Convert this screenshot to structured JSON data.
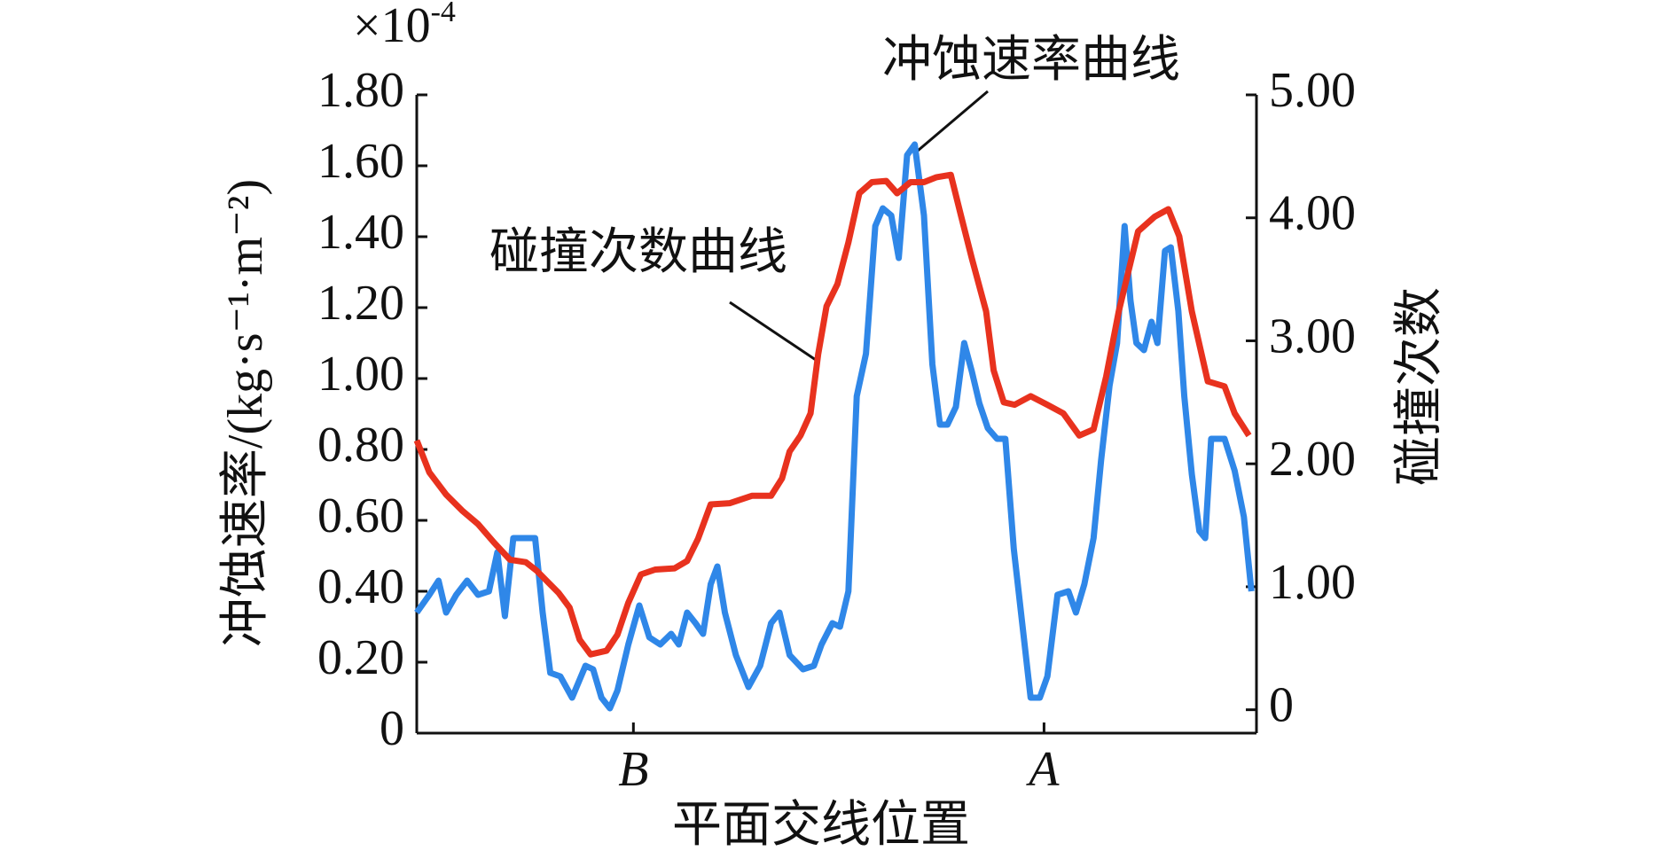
{
  "chart_data": {
    "type": "line",
    "y_multiplier": {
      "base": "×10",
      "exponent": "-4"
    },
    "ylabel": "冲蚀速率/(kg·s⁻¹·m⁻²)",
    "y2label": "碰撞次数",
    "xlabel": "平面交线位置",
    "annotations": [
      "冲蚀速率曲线",
      "碰撞次数曲线"
    ],
    "xlim": [
      0,
      100
    ],
    "xticks": [
      {
        "value": 25.8,
        "label": "B"
      },
      {
        "value": 74.7,
        "label": "A"
      }
    ],
    "ylim": [
      0,
      1.8
    ],
    "yticks": [
      0,
      {
        "value": 0.2,
        "label": "0.20"
      },
      {
        "value": 0.4,
        "label": "0.40"
      },
      {
        "value": 0.6,
        "label": "0.60"
      },
      {
        "value": 0.8,
        "label": "0.80"
      },
      {
        "value": 1.0,
        "label": "1.00"
      },
      {
        "value": 1.2,
        "label": "1.20"
      },
      {
        "value": 1.4,
        "label": "1.40"
      },
      {
        "value": 1.6,
        "label": "1.60"
      },
      {
        "value": 1.8,
        "label": "1.80"
      }
    ],
    "y2lim": [
      -0.19,
      5
    ],
    "y2ticks": [
      0,
      {
        "value": 1,
        "label": "1.00"
      },
      {
        "value": 2,
        "label": "2.00"
      },
      {
        "value": 3,
        "label": "3.00"
      },
      {
        "value": 4,
        "label": "4.00"
      },
      {
        "value": 5,
        "label": "5.00"
      }
    ],
    "series": [
      {
        "color": "#2f87e8",
        "axis": "y",
        "x": [
          0.0,
          1.5,
          2.6,
          3.5,
          4.7,
          6.0,
          7.3,
          8.6,
          9.6,
          10.5,
          11.5,
          13.0,
          14.1,
          15.0,
          15.9,
          17.1,
          18.5,
          20.1,
          21.0,
          22.0,
          23.0,
          23.9,
          25.2,
          26.5,
          27.7,
          29.0,
          30.3,
          31.2,
          32.2,
          33.2,
          34.1,
          35.0,
          35.8,
          36.7,
          38.0,
          39.5,
          40.9,
          42.2,
          43.2,
          44.4,
          46.0,
          47.3,
          48.2,
          49.5,
          50.4,
          51.4,
          52.4,
          53.5,
          54.6,
          55.5,
          56.5,
          57.4,
          58.4,
          59.3,
          60.4,
          61.4,
          62.3,
          63.2,
          64.2,
          65.2,
          66.1,
          67.0,
          68.0,
          69.1,
          70.1,
          71.1,
          72.1,
          73.1,
          74.2,
          75.1,
          76.3,
          77.6,
          78.5,
          79.5,
          80.6,
          81.5,
          82.5,
          83.4,
          84.3,
          85.0,
          85.7,
          86.6,
          87.5,
          88.2,
          89.1,
          89.8,
          90.7,
          91.4,
          92.3,
          93.2,
          93.9,
          94.6,
          96.2,
          97.4,
          98.5,
          99.4
        ],
        "values": [
          0.34,
          0.39,
          0.43,
          0.34,
          0.39,
          0.43,
          0.39,
          0.4,
          0.51,
          0.33,
          0.55,
          0.55,
          0.55,
          0.34,
          0.17,
          0.16,
          0.1,
          0.19,
          0.18,
          0.1,
          0.07,
          0.12,
          0.25,
          0.36,
          0.27,
          0.25,
          0.28,
          0.25,
          0.34,
          0.31,
          0.28,
          0.42,
          0.47,
          0.34,
          0.22,
          0.13,
          0.19,
          0.31,
          0.34,
          0.22,
          0.18,
          0.19,
          0.25,
          0.31,
          0.3,
          0.4,
          0.95,
          1.07,
          1.43,
          1.48,
          1.46,
          1.34,
          1.63,
          1.66,
          1.46,
          1.04,
          0.87,
          0.87,
          0.92,
          1.1,
          1.02,
          0.93,
          0.86,
          0.83,
          0.83,
          0.52,
          0.31,
          0.1,
          0.1,
          0.16,
          0.39,
          0.4,
          0.34,
          0.42,
          0.55,
          0.77,
          0.98,
          1.1,
          1.43,
          1.22,
          1.1,
          1.08,
          1.16,
          1.1,
          1.36,
          1.37,
          1.19,
          0.95,
          0.73,
          0.57,
          0.55,
          0.83,
          0.83,
          0.74,
          0.61,
          0.4
        ]
      },
      {
        "color": "#e8321e",
        "axis": "y2",
        "x": [
          0,
          1.5,
          3.5,
          5.4,
          7.3,
          9.2,
          11.1,
          13.0,
          14.3,
          15.6,
          16.9,
          18.2,
          19.4,
          20.7,
          22.6,
          23.9,
          25.2,
          26.7,
          28.4,
          30.7,
          32.2,
          33.5,
          35.0,
          37.3,
          39.9,
          42.2,
          43.5,
          44.4,
          45.7,
          46.9,
          47.8,
          48.8,
          50.1,
          51.4,
          52.7,
          54.2,
          55.9,
          57.2,
          58.8,
          60.4,
          61.9,
          63.6,
          64.8,
          66.1,
          67.8,
          68.7,
          69.9,
          71.2,
          73.1,
          75.1,
          77.0,
          78.9,
          80.6,
          82.1,
          83.6,
          85.9,
          87.9,
          89.5,
          90.8,
          92.3,
          94.2,
          96.2,
          97.4,
          99.1
        ],
        "values": [
          2.19,
          1.93,
          1.75,
          1.62,
          1.51,
          1.36,
          1.22,
          1.2,
          1.13,
          1.04,
          0.95,
          0.83,
          0.57,
          0.45,
          0.48,
          0.61,
          0.87,
          1.1,
          1.14,
          1.15,
          1.21,
          1.39,
          1.67,
          1.68,
          1.74,
          1.74,
          1.88,
          2.1,
          2.23,
          2.41,
          2.89,
          3.28,
          3.46,
          3.8,
          4.2,
          4.29,
          4.3,
          4.2,
          4.29,
          4.29,
          4.33,
          4.35,
          4.02,
          3.67,
          3.24,
          2.76,
          2.5,
          2.48,
          2.55,
          2.48,
          2.41,
          2.23,
          2.28,
          2.71,
          3.24,
          3.89,
          4.01,
          4.07,
          3.85,
          3.24,
          2.67,
          2.63,
          2.41,
          2.23
        ]
      }
    ]
  }
}
